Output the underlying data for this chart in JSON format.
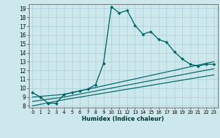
{
  "xlabel": "Humidex (Indice chaleur)",
  "bg_color": "#cce8ec",
  "grid_color": "#aacdd4",
  "line_color": "#006666",
  "xlim": [
    -0.5,
    23.5
  ],
  "ylim": [
    7.8,
    19.5
  ],
  "xticks": [
    0,
    1,
    2,
    3,
    4,
    5,
    6,
    7,
    8,
    9,
    10,
    11,
    12,
    13,
    14,
    15,
    16,
    17,
    18,
    19,
    20,
    21,
    22,
    23
  ],
  "yticks": [
    8,
    9,
    10,
    11,
    12,
    13,
    14,
    15,
    16,
    17,
    18,
    19
  ],
  "main_x": [
    0,
    1,
    2,
    3,
    4,
    5,
    6,
    7,
    8,
    9,
    10,
    11,
    12,
    13,
    14,
    15,
    16,
    17,
    18,
    19,
    20,
    21,
    22,
    23
  ],
  "main_y": [
    9.5,
    9.0,
    8.3,
    8.3,
    9.3,
    9.5,
    9.7,
    9.9,
    10.4,
    12.8,
    19.2,
    18.5,
    18.8,
    17.1,
    16.1,
    16.4,
    15.5,
    15.2,
    14.1,
    13.3,
    12.7,
    12.5,
    12.7,
    12.7
  ],
  "line2_x": [
    0,
    4,
    23
  ],
  "line2_y": [
    9.0,
    9.3,
    13.0
  ],
  "line3_x": [
    0,
    4,
    23
  ],
  "line3_y": [
    8.5,
    9.0,
    12.2
  ],
  "line4_x": [
    0,
    4,
    23
  ],
  "line4_y": [
    8.0,
    8.7,
    11.5
  ]
}
